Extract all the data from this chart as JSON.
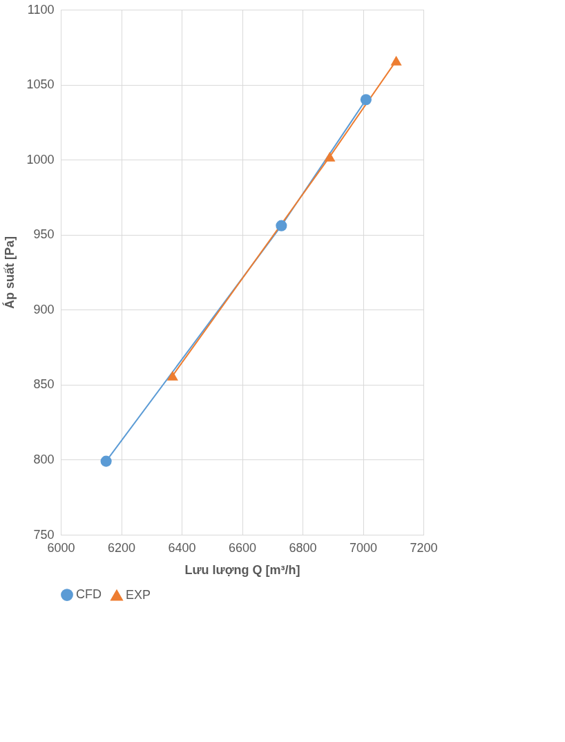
{
  "chart_data": {
    "type": "line",
    "xlabel": "Lưu lượng Q [m³/h]",
    "ylabel": "Áp suất [Pa]",
    "xlim": [
      6000,
      7200
    ],
    "xticks": [
      6000,
      6200,
      6400,
      6600,
      6800,
      7000,
      7200
    ],
    "ylim": [
      750,
      1100
    ],
    "yticks": [
      750,
      800,
      850,
      900,
      950,
      1000,
      1050,
      1100
    ],
    "grid": true,
    "legend": "bottom",
    "series": [
      {
        "name": "CFD",
        "color": "#5b9bd5",
        "marker": "circle",
        "x": [
          6150,
          6730,
          7010
        ],
        "values": [
          799,
          956,
          1040
        ]
      },
      {
        "name": "EXP",
        "color": "#ed7d31",
        "marker": "triangle",
        "x": [
          6370,
          6890,
          7110
        ],
        "values": [
          856,
          1002,
          1066
        ]
      }
    ]
  }
}
